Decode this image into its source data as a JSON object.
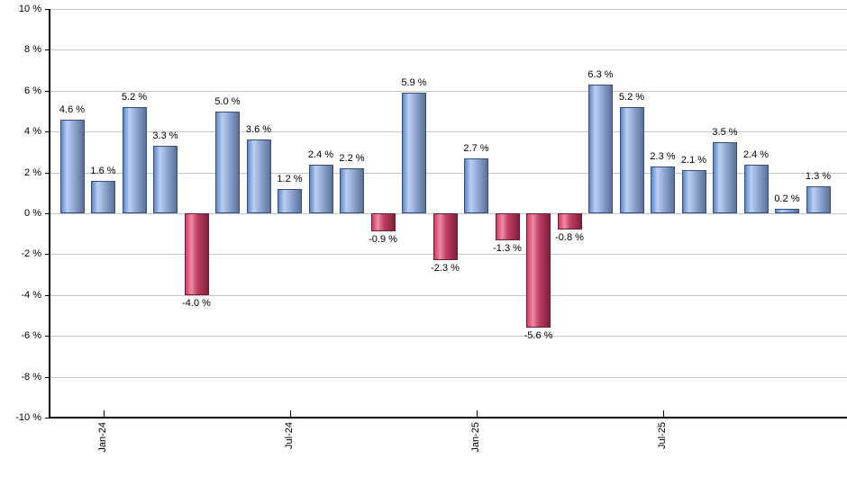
{
  "chart": {
    "title": "",
    "background_color": "#ffffff",
    "gridline_color": "#c6c6c6",
    "axis_color": "#000000",
    "text_color": "#000000"
  },
  "chart_data": {
    "type": "bar",
    "title": "",
    "xlabel": "",
    "ylabel": "",
    "ylim": [
      -10,
      10
    ],
    "grid": true,
    "legend": "none",
    "values": [
      4.6,
      1.6,
      5.2,
      3.3,
      -4.0,
      5.0,
      3.6,
      1.2,
      2.4,
      2.2,
      -0.9,
      5.9,
      -2.3,
      2.7,
      -1.3,
      -5.6,
      -0.8,
      6.3,
      5.2,
      2.3,
      2.1,
      3.5,
      2.4,
      0.2,
      1.3
    ],
    "bar_labels": [
      "4.6 %",
      "1.6 %",
      "5.2 %",
      "3.3 %",
      "-4.0 %",
      "5.0 %",
      "3.6 %",
      "1.2 %",
      "2.4 %",
      "2.2 %",
      "-0.9 %",
      "5.9 %",
      "-2.3 %",
      "2.7 %",
      "-1.3 %",
      "-5.6 %",
      "-0.8 %",
      "6.3 %",
      "5.2 %",
      "2.3 %",
      "2.1 %",
      "3.5 %",
      "2.4 %",
      "0.2 %",
      "1.3 %"
    ],
    "x_ticks": [
      {
        "label": "Jan-24",
        "bar_index": 1
      },
      {
        "label": "Jul-24",
        "bar_index": 7
      },
      {
        "label": "Jan-25",
        "bar_index": 13
      },
      {
        "label": "Jul-25",
        "bar_index": 19
      }
    ],
    "y_ticks": [
      "10 %",
      "8 %",
      "6 %",
      "4 %",
      "2 %",
      "0 %",
      "-2 %",
      "-4 %",
      "-6 %",
      "-8 %",
      "-10 %"
    ],
    "y_tick_values": [
      10,
      8,
      6,
      4,
      2,
      0,
      -2,
      -4,
      -6,
      -8,
      -10
    ],
    "bar_colors": {
      "positive": {
        "border": "#31507e",
        "gradient": [
          "#6187c7",
          "#bacff1",
          "#96add9",
          "#5b7096"
        ]
      },
      "negative": {
        "border": "#701a31",
        "gradient": [
          "#d23b63",
          "#ec8ba5",
          "#bf3f64",
          "#80203a"
        ]
      }
    }
  }
}
